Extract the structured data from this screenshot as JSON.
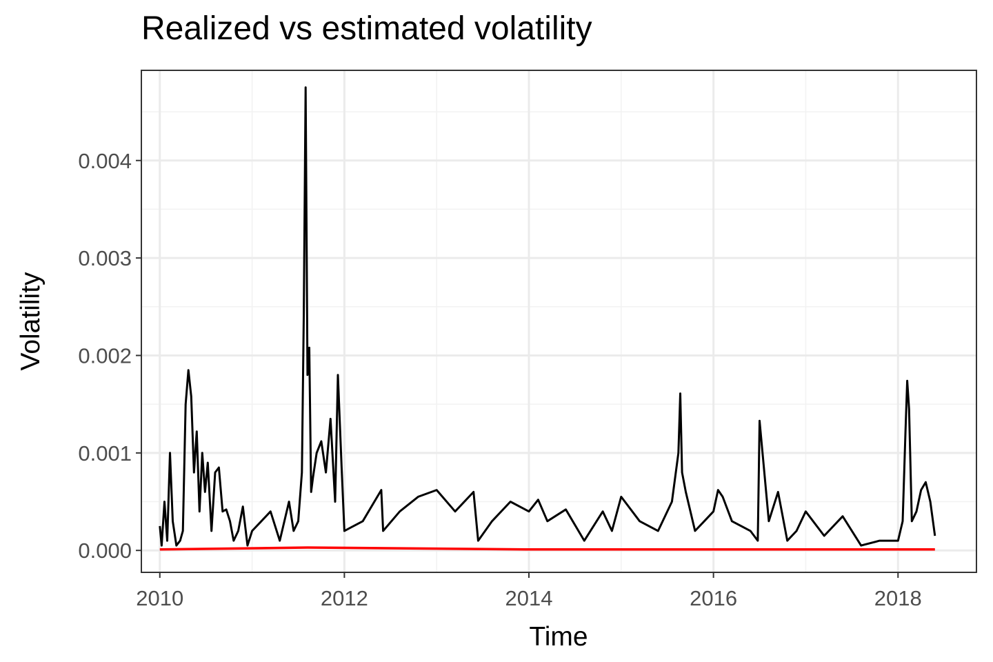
{
  "chart_data": {
    "type": "line",
    "title": "Realized vs estimated volatility",
    "xlabel": "Time",
    "ylabel": "Volatility",
    "xlim": [
      2009.8,
      2018.85
    ],
    "ylim": [
      -0.000225,
      0.004925
    ],
    "x_ticks": [
      2010,
      2012,
      2014,
      2016,
      2018
    ],
    "x_tick_labels": [
      "2010",
      "2012",
      "2014",
      "2016",
      "2018"
    ],
    "y_ticks": [
      0,
      0.001,
      0.002,
      0.003,
      0.004
    ],
    "y_tick_labels": [
      "0.000",
      "0.001",
      "0.002",
      "0.003",
      "0.004"
    ],
    "grid": true,
    "legend": "none",
    "series": [
      {
        "color": "#000000",
        "x": [
          2010.0,
          2010.02,
          2010.05,
          2010.08,
          2010.11,
          2010.14,
          2010.18,
          2010.22,
          2010.25,
          2010.28,
          2010.31,
          2010.34,
          2010.37,
          2010.4,
          2010.43,
          2010.46,
          2010.49,
          2010.52,
          2010.56,
          2010.6,
          2010.64,
          2010.68,
          2010.72,
          2010.76,
          2010.8,
          2010.85,
          2010.9,
          2010.95,
          2011.0,
          2011.1,
          2011.2,
          2011.3,
          2011.4,
          2011.45,
          2011.5,
          2011.54,
          2011.56,
          2011.58,
          2011.6,
          2011.62,
          2011.64,
          2011.66,
          2011.7,
          2011.75,
          2011.8,
          2011.85,
          2011.9,
          2011.93,
          2011.97,
          2012.0,
          2012.2,
          2012.4,
          2012.42,
          2012.6,
          2012.8,
          2013.0,
          2013.2,
          2013.4,
          2013.45,
          2013.6,
          2013.8,
          2014.0,
          2014.1,
          2014.2,
          2014.4,
          2014.6,
          2014.8,
          2014.9,
          2015.0,
          2015.2,
          2015.4,
          2015.55,
          2015.62,
          2015.64,
          2015.66,
          2015.7,
          2015.8,
          2015.9,
          2016.0,
          2016.05,
          2016.1,
          2016.2,
          2016.4,
          2016.48,
          2016.5,
          2016.6,
          2016.7,
          2016.8,
          2016.9,
          2017.0,
          2017.2,
          2017.4,
          2017.6,
          2017.8,
          2018.0,
          2018.05,
          2018.08,
          2018.1,
          2018.12,
          2018.15,
          2018.2,
          2018.25,
          2018.3,
          2018.35,
          2018.4
        ],
        "y": [
          0.00025,
          5e-05,
          0.0005,
          0.0001,
          0.001,
          0.0003,
          5e-05,
          0.0001,
          0.0002,
          0.0015,
          0.00185,
          0.00158,
          0.0008,
          0.00122,
          0.0004,
          0.001,
          0.0006,
          0.0009,
          0.0002,
          0.0008,
          0.00085,
          0.0004,
          0.00042,
          0.0003,
          0.0001,
          0.0002,
          0.00045,
          5e-05,
          0.0002,
          0.0003,
          0.0004,
          0.0001,
          0.0005,
          0.0002,
          0.0003,
          0.0008,
          0.0024,
          0.00475,
          0.0018,
          0.00208,
          0.0006,
          0.00075,
          0.001,
          0.00112,
          0.0008,
          0.00135,
          0.0005,
          0.0018,
          0.00085,
          0.0002,
          0.0003,
          0.00062,
          0.0002,
          0.0004,
          0.00055,
          0.00062,
          0.0004,
          0.0006,
          0.0001,
          0.0003,
          0.0005,
          0.0004,
          0.00052,
          0.0003,
          0.00042,
          0.0001,
          0.0004,
          0.0002,
          0.00055,
          0.0003,
          0.0002,
          0.0005,
          0.001,
          0.00161,
          0.0008,
          0.0006,
          0.0002,
          0.0003,
          0.0004,
          0.00062,
          0.00055,
          0.0003,
          0.0002,
          0.0001,
          0.00133,
          0.0003,
          0.0006,
          0.0001,
          0.0002,
          0.0004,
          0.00015,
          0.00035,
          5e-05,
          0.0001,
          0.0001,
          0.0003,
          0.0012,
          0.00174,
          0.00145,
          0.0003,
          0.0004,
          0.00062,
          0.0007,
          0.0005,
          0.00015
        ]
      },
      {
        "color": "#ff0000",
        "x": [
          2010.0,
          2011.6,
          2014.0,
          2016.0,
          2018.4
        ],
        "y": [
          1e-05,
          3e-05,
          1e-05,
          1e-05,
          1e-05
        ]
      }
    ]
  }
}
